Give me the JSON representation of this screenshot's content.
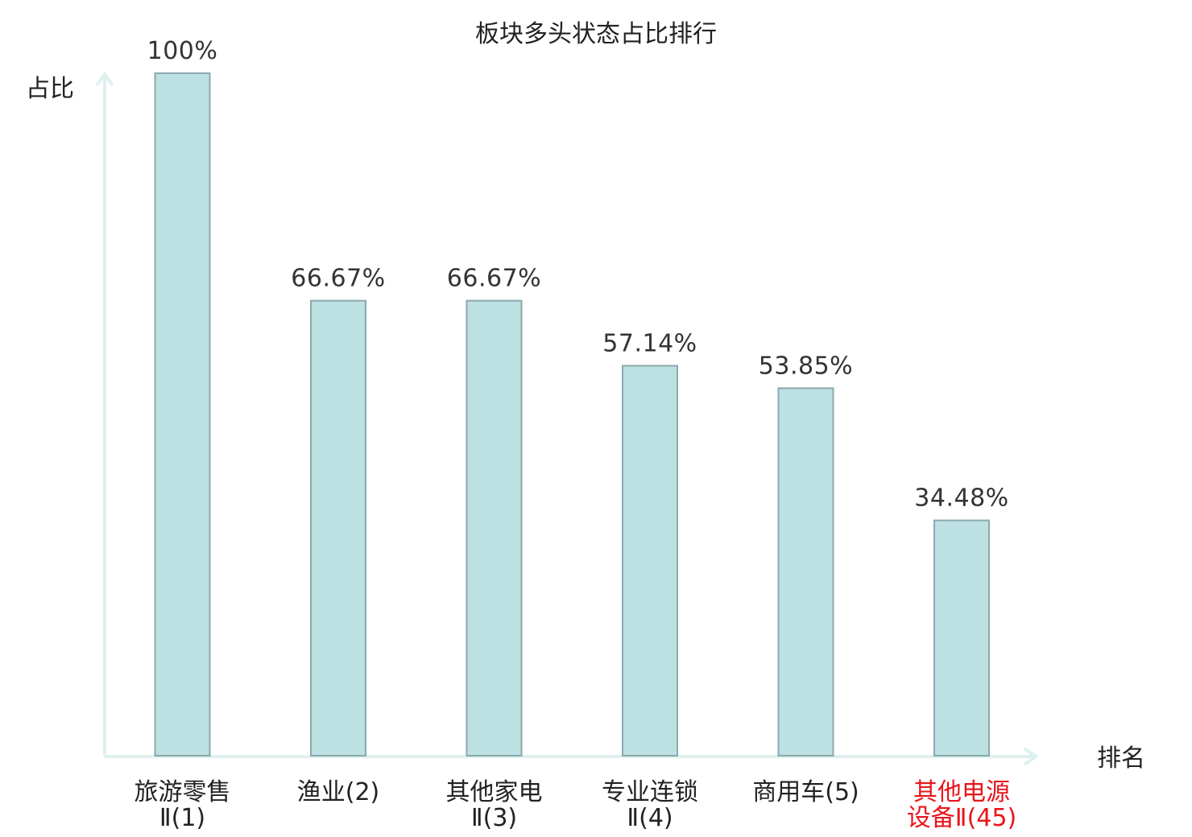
{
  "chart_data": {
    "type": "bar",
    "title": "板块多头状态占比排行",
    "ylabel": "占比",
    "xlabel": "排名",
    "ylim": [
      0,
      100
    ],
    "grid": false,
    "categories": [
      {
        "name": "旅游零售",
        "suffix": "Ⅱ(1)"
      },
      {
        "name": "渔业",
        "suffix": "(2)"
      },
      {
        "name": "其他家电",
        "suffix": "Ⅱ(3)"
      },
      {
        "name": "专业连锁",
        "suffix": "Ⅱ(4)"
      },
      {
        "name": "商用车",
        "suffix": "(5)"
      },
      {
        "name": "其他电源设备",
        "suffix": "Ⅱ(45)",
        "highlight": true
      }
    ],
    "values": [
      100,
      66.67,
      66.67,
      57.14,
      53.85,
      34.48
    ],
    "value_labels": [
      "100%",
      "66.67%",
      "66.67%",
      "57.14%",
      "53.85%",
      "34.48%"
    ]
  },
  "colors": {
    "bar_fill": "#bde0e3",
    "bar_stroke": "#8aa9ad",
    "axis": "#dff1ef",
    "text": "#222222",
    "highlight": "#e8141b"
  }
}
